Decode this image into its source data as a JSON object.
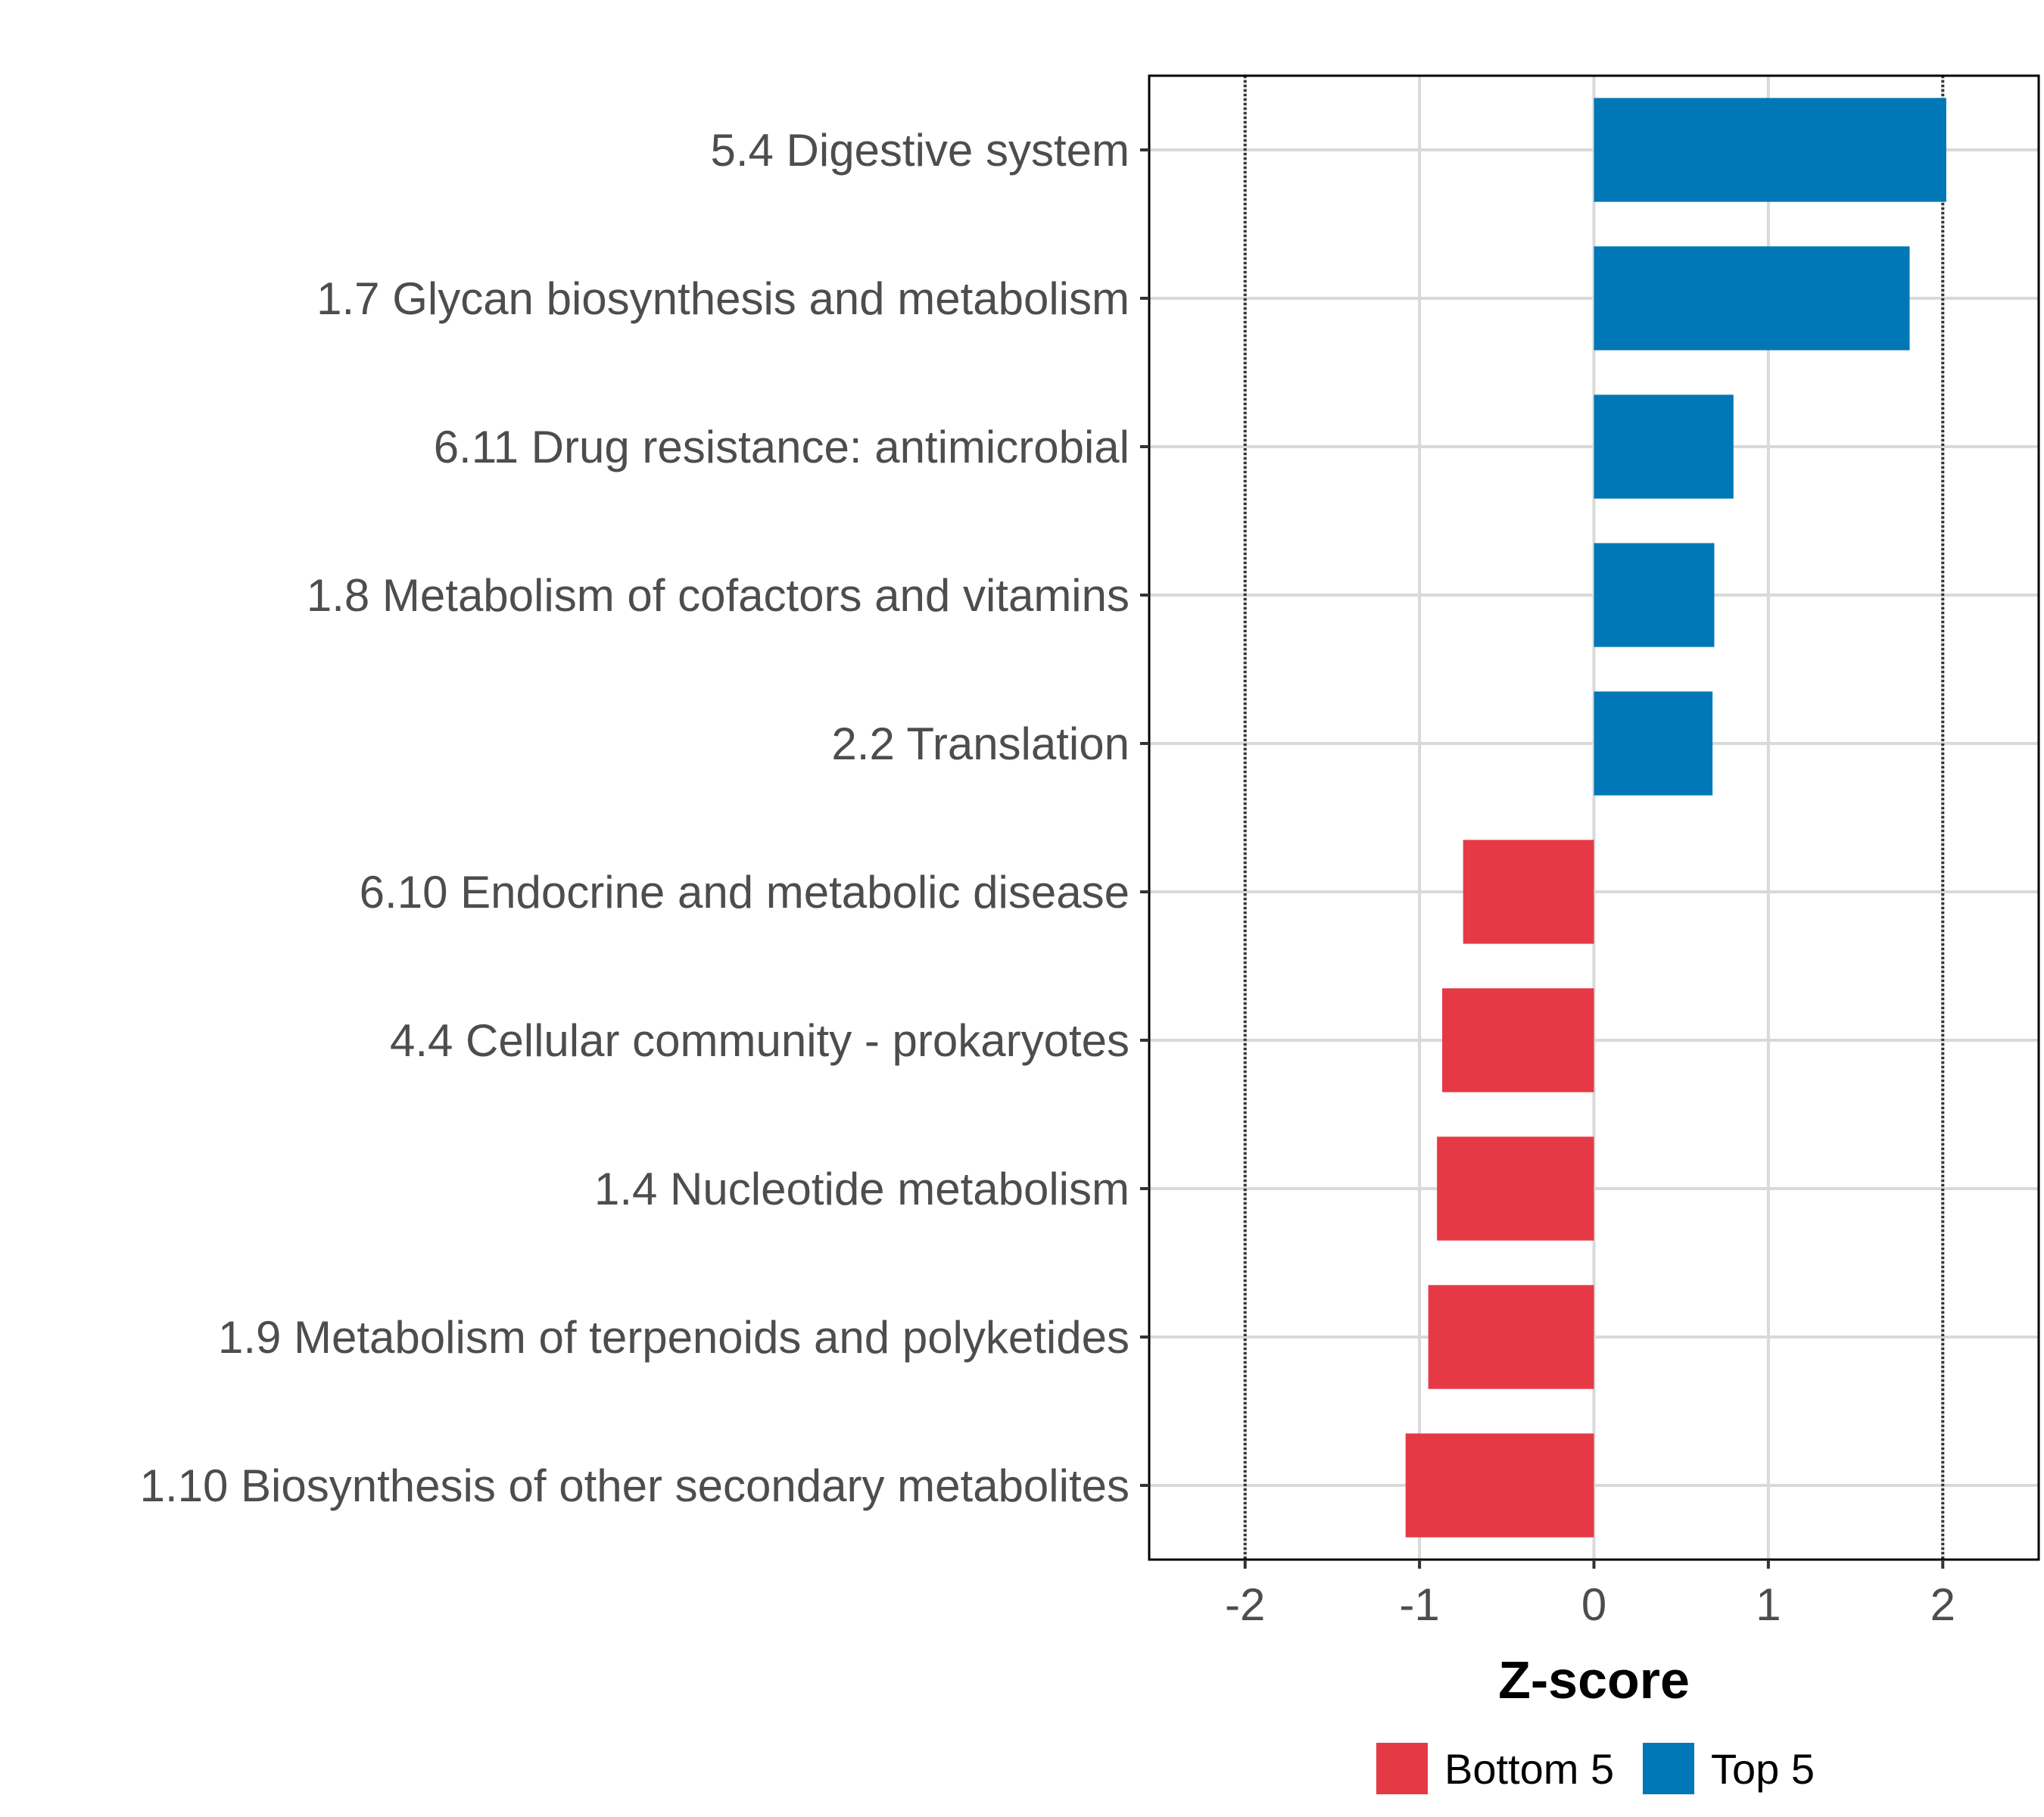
{
  "chart_data": {
    "type": "bar",
    "orientation": "horizontal",
    "categories": [
      "5.4 Digestive system",
      "1.7 Glycan biosynthesis and metabolism",
      "6.11 Drug resistance: antimicrobial",
      "1.8 Metabolism of cofactors and vitamins",
      "2.2 Translation",
      "6.10 Endocrine and metabolic disease",
      "4.4 Cellular community - prokaryotes",
      "1.4 Nucleotide metabolism",
      "1.9 Metabolism of terpenoids and polyketides",
      "1.10 Biosynthesis of other secondary metabolites"
    ],
    "values": [
      2.02,
      1.81,
      0.8,
      0.69,
      0.68,
      -0.75,
      -0.87,
      -0.9,
      -0.95,
      -1.08
    ],
    "groups": [
      "Top 5",
      "Top 5",
      "Top 5",
      "Top 5",
      "Top 5",
      "Bottom 5",
      "Bottom 5",
      "Bottom 5",
      "Bottom 5",
      "Bottom 5"
    ],
    "xlabel": "Z-score",
    "ylabel": "",
    "xlim": [
      -2.55,
      2.55
    ],
    "xticks": [
      -2,
      -1,
      0,
      1,
      2
    ],
    "xtick_labels": [
      "-2",
      "-1",
      "0",
      "1",
      "2"
    ],
    "reference_lines": [
      -2,
      2
    ],
    "grid": true,
    "legend": {
      "position": "bottom",
      "entries": [
        {
          "label": "Bottom 5",
          "color": "#e63946"
        },
        {
          "label": "Top 5",
          "color": "#0077b6"
        }
      ]
    },
    "colors": {
      "Top 5": "#0077b6",
      "Bottom 5": "#e63946"
    }
  }
}
